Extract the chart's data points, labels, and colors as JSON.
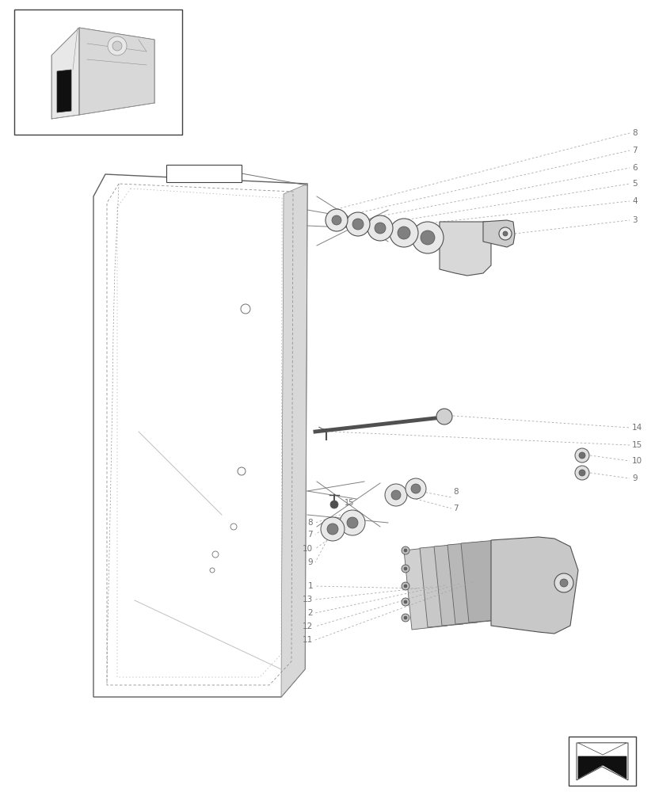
{
  "bg_color": "#ffffff",
  "lc": "#707070",
  "tc": "#707070",
  "fig_width": 8.28,
  "fig_height": 10.0,
  "dpi": 100
}
